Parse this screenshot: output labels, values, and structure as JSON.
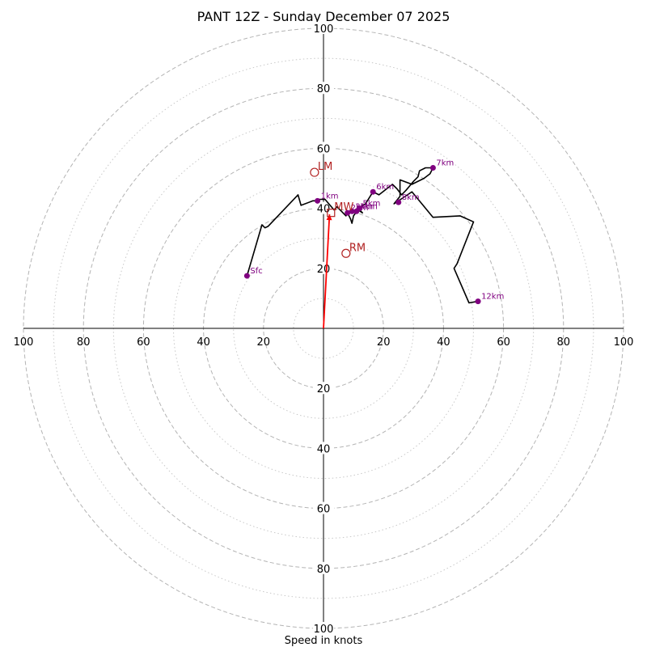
{
  "chart_data": {
    "type": "hodograph",
    "title": "PANT 12Z - Sunday December 07 2025",
    "xlabel": "Speed in knots",
    "units": "knots",
    "rlim": [
      0,
      100
    ],
    "major_rings": [
      20,
      40,
      60,
      80,
      100
    ],
    "minor_rings": [
      10,
      30,
      50,
      70,
      90
    ],
    "axis_ticks": [
      20,
      40,
      60,
      80,
      100
    ],
    "hodograph_trace": {
      "color": "#000000",
      "points": [
        [
          -25.5,
          17.5
        ],
        [
          -20.5,
          34.5
        ],
        [
          -19.5,
          33.5
        ],
        [
          -18.5,
          34.0
        ],
        [
          -8.5,
          44.5
        ],
        [
          -7.5,
          41.0
        ],
        [
          -3.5,
          42.5
        ],
        [
          -2.0,
          42.5
        ],
        [
          -1.5,
          43.0
        ],
        [
          0.5,
          43.0
        ],
        [
          3.5,
          39.5
        ],
        [
          4.5,
          40.5
        ],
        [
          6.0,
          39.0
        ],
        [
          7.5,
          37.5
        ],
        [
          8.0,
          38.5
        ],
        [
          9.0,
          36.5
        ],
        [
          9.5,
          35.0
        ],
        [
          10.0,
          37.5
        ],
        [
          11.5,
          39.5
        ],
        [
          13.0,
          38.5
        ],
        [
          11.5,
          40.0
        ],
        [
          14.0,
          41.5
        ],
        [
          16.5,
          45.5
        ],
        [
          18.5,
          44.5
        ],
        [
          23.0,
          48.0
        ],
        [
          24.5,
          46.5
        ],
        [
          26.0,
          44.5
        ],
        [
          27.5,
          46.0
        ],
        [
          30.0,
          49.0
        ],
        [
          31.5,
          50.5
        ],
        [
          32.0,
          52.5
        ],
        [
          34.0,
          53.5
        ],
        [
          36.5,
          53.5
        ],
        [
          35.5,
          51.5
        ],
        [
          33.5,
          50.0
        ],
        [
          29.5,
          48.0
        ],
        [
          25.5,
          49.5
        ],
        [
          25.5,
          44.0
        ],
        [
          23.5,
          41.5
        ],
        [
          29.5,
          45.5
        ],
        [
          36.5,
          37.0
        ],
        [
          45.5,
          37.5
        ],
        [
          50.0,
          35.5
        ],
        [
          44.5,
          21.5
        ],
        [
          43.5,
          20.0
        ],
        [
          48.5,
          8.5
        ],
        [
          51.5,
          9.0
        ]
      ]
    },
    "height_markers": [
      {
        "label": "Sfc",
        "u": -25.5,
        "v": 17.5
      },
      {
        "label": "1km",
        "u": -2.0,
        "v": 42.5
      },
      {
        "label": "2km",
        "u": 8.0,
        "v": 38.5
      },
      {
        "label": "3km",
        "u": 9.5,
        "v": 39.0
      },
      {
        "label": "4km",
        "u": 11.0,
        "v": 39.0
      },
      {
        "label": "5km",
        "u": 12.0,
        "v": 40.0
      },
      {
        "label": "6km",
        "u": 16.5,
        "v": 45.5
      },
      {
        "label": "7km",
        "u": 36.5,
        "v": 53.5
      },
      {
        "label": "8km",
        "u": 25.0,
        "v": 42.0
      },
      {
        "label": "12km",
        "u": 51.5,
        "v": 9.0
      }
    ],
    "storm_motion": [
      {
        "label": "LM",
        "u": -3.0,
        "v": 52.0
      },
      {
        "label": "RM",
        "u": 7.5,
        "v": 25.0
      },
      {
        "label": "MW",
        "u": 2.5,
        "v": 38.5
      }
    ],
    "shear_vector": {
      "color": "#ff0000",
      "u": 2.0,
      "v": 38.0
    }
  }
}
